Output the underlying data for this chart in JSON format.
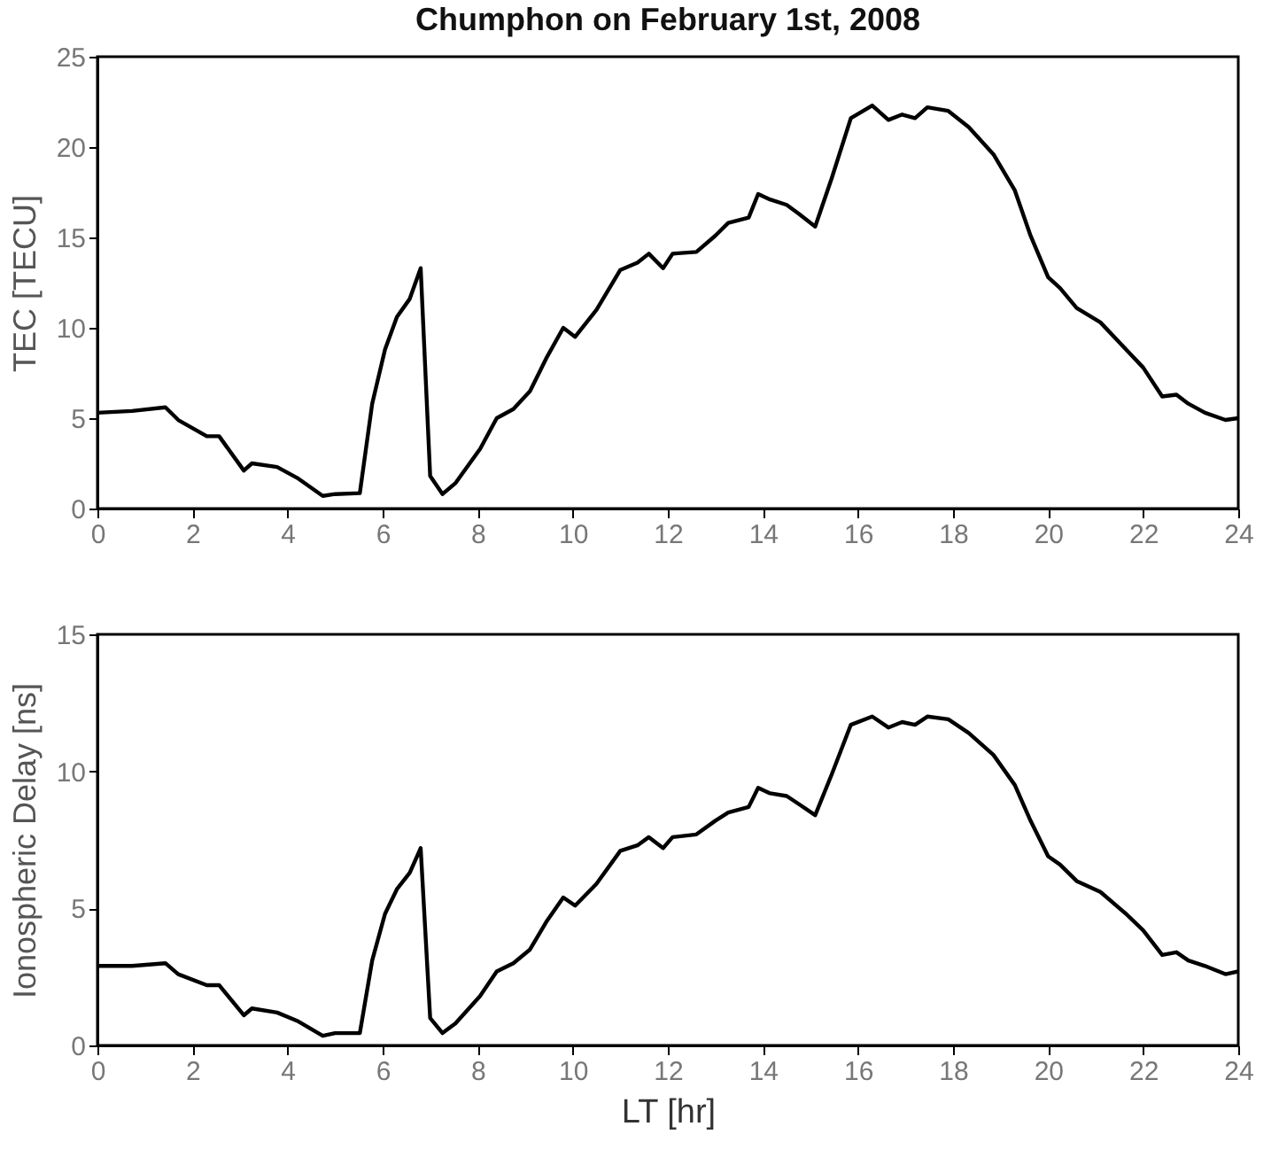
{
  "chart_data": [
    {
      "type": "line",
      "title": "Chumphon on February 1st, 2008",
      "ylabel": "TEC [TECU]",
      "x": [
        0,
        0.73,
        1.43,
        1.7,
        2.3,
        2.56,
        3.08,
        3.25,
        3.78,
        4.2,
        4.74,
        5.0,
        5.52,
        5.78,
        6.05,
        6.3,
        6.57,
        6.8,
        7.0,
        7.26,
        7.53,
        8.05,
        8.4,
        8.75,
        9.1,
        9.44,
        9.8,
        10.05,
        10.5,
        11.0,
        11.36,
        11.6,
        11.9,
        12.1,
        12.6,
        13.0,
        13.27,
        13.7,
        13.9,
        14.15,
        14.5,
        14.76,
        15.1,
        15.45,
        15.85,
        16.3,
        16.64,
        16.93,
        17.2,
        17.46,
        17.9,
        18.33,
        18.85,
        19.3,
        19.63,
        20.0,
        20.25,
        20.6,
        21.1,
        21.64,
        22.0,
        22.4,
        22.7,
        22.95,
        23.3,
        23.73,
        24
      ],
      "series": [
        {
          "color": "#000000",
          "values": [
            5.3,
            5.4,
            5.6,
            4.9,
            4.0,
            4.0,
            2.1,
            2.5,
            2.3,
            1.7,
            0.7,
            0.8,
            0.85,
            5.8,
            8.8,
            10.6,
            11.6,
            13.3,
            1.8,
            0.8,
            1.4,
            3.3,
            5.0,
            5.5,
            6.5,
            8.3,
            10.0,
            9.5,
            11.0,
            13.2,
            13.6,
            14.1,
            13.3,
            14.1,
            14.2,
            15.1,
            15.8,
            16.1,
            17.4,
            17.1,
            16.8,
            16.3,
            15.6,
            18.3,
            21.6,
            22.3,
            21.5,
            21.8,
            21.6,
            22.2,
            22.0,
            21.1,
            19.6,
            17.6,
            15.1,
            12.8,
            12.2,
            11.1,
            10.3,
            8.8,
            7.8,
            6.2,
            6.3,
            5.8,
            5.3,
            4.9,
            5.0
          ]
        }
      ],
      "xlim": [
        0,
        24
      ],
      "xticks": [
        0,
        2,
        4,
        6,
        8,
        10,
        12,
        14,
        16,
        18,
        20,
        22,
        24
      ],
      "ylim": [
        0,
        25
      ],
      "yticks": [
        0,
        5,
        10,
        15,
        20,
        25
      ],
      "line_style": "solid"
    },
    {
      "type": "line",
      "xlabel": "LT [hr]",
      "ylabel": "Ionospheric Delay [ns]",
      "x": [
        0,
        0.73,
        1.43,
        1.7,
        2.3,
        2.56,
        3.08,
        3.25,
        3.78,
        4.2,
        4.74,
        5.0,
        5.52,
        5.78,
        6.05,
        6.3,
        6.57,
        6.8,
        7.0,
        7.26,
        7.53,
        8.05,
        8.4,
        8.75,
        9.1,
        9.44,
        9.8,
        10.05,
        10.5,
        11.0,
        11.36,
        11.6,
        11.9,
        12.1,
        12.6,
        13.0,
        13.27,
        13.7,
        13.9,
        14.15,
        14.5,
        14.76,
        15.1,
        15.45,
        15.85,
        16.3,
        16.64,
        16.93,
        17.2,
        17.46,
        17.9,
        18.33,
        18.85,
        19.3,
        19.63,
        20.0,
        20.25,
        20.6,
        21.1,
        21.64,
        22.0,
        22.4,
        22.7,
        22.95,
        23.3,
        23.73,
        24
      ],
      "series": [
        {
          "color": "#000000",
          "values": [
            2.9,
            2.9,
            3.0,
            2.6,
            2.2,
            2.2,
            1.1,
            1.35,
            1.2,
            0.9,
            0.35,
            0.45,
            0.45,
            3.1,
            4.8,
            5.7,
            6.3,
            7.2,
            1.0,
            0.45,
            0.8,
            1.8,
            2.7,
            3.0,
            3.5,
            4.5,
            5.4,
            5.1,
            5.9,
            7.1,
            7.3,
            7.6,
            7.2,
            7.6,
            7.7,
            8.2,
            8.5,
            8.7,
            9.4,
            9.2,
            9.1,
            8.8,
            8.4,
            9.9,
            11.7,
            12.0,
            11.6,
            11.8,
            11.7,
            12.0,
            11.9,
            11.4,
            10.6,
            9.5,
            8.2,
            6.9,
            6.6,
            6.0,
            5.6,
            4.8,
            4.2,
            3.3,
            3.4,
            3.1,
            2.9,
            2.6,
            2.7
          ]
        }
      ],
      "xlim": [
        0,
        24
      ],
      "xticks": [
        0,
        2,
        4,
        6,
        8,
        10,
        12,
        14,
        16,
        18,
        20,
        22,
        24
      ],
      "ylim": [
        0,
        15
      ],
      "yticks": [
        0,
        5,
        10,
        15
      ],
      "line_style": "solid"
    }
  ]
}
